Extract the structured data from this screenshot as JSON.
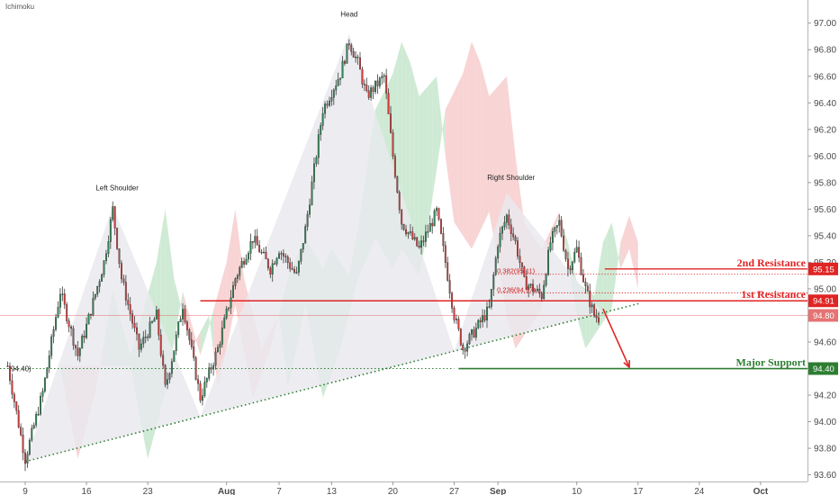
{
  "indicator_label": "Ichimoku",
  "colors": {
    "up": "#2e8b57",
    "down": "#e03b3b",
    "wick": "#3a3a3a",
    "resistance": "#e02424",
    "support": "#2e7d32",
    "cloud_bull": "#bfe3c5",
    "cloud_bear": "#f5c6c6",
    "pattern_fill": "#e9e9ee",
    "current": "#e57373"
  },
  "chart_data": {
    "type": "candlestick",
    "title": "",
    "ylim": [
      93.55,
      97.12
    ],
    "y_ticks": [
      "93.60",
      "93.80",
      "94.00",
      "94.20",
      "94.40",
      "94.60",
      "94.80",
      "95.00",
      "95.20",
      "95.40",
      "95.60",
      "95.80",
      "96.00",
      "96.20",
      "96.40",
      "96.60",
      "96.80",
      "97.00"
    ],
    "x_ticks": [
      {
        "label": "9",
        "day": 9
      },
      {
        "label": "16",
        "day": 16
      },
      {
        "label": "23",
        "day": 23
      },
      {
        "label": "Aug",
        "day": 32
      },
      {
        "label": "7",
        "day": 38
      },
      {
        "label": "13",
        "day": 44
      },
      {
        "label": "20",
        "day": 51
      },
      {
        "label": "27",
        "day": 58
      },
      {
        "label": "Sep",
        "day": 63
      },
      {
        "label": "10",
        "day": 72
      },
      {
        "label": "17",
        "day": 79
      },
      {
        "label": "24",
        "day": 86
      },
      {
        "label": "Oct",
        "day": 93
      }
    ],
    "price_path": [
      [
        7,
        94.42
      ],
      [
        9,
        93.72
      ],
      [
        11,
        94.22
      ],
      [
        13,
        94.98
      ],
      [
        15,
        94.5
      ],
      [
        16,
        94.72
      ],
      [
        18,
        95.2
      ],
      [
        19,
        95.6
      ],
      [
        20,
        95.08
      ],
      [
        22,
        94.55
      ],
      [
        24,
        94.8
      ],
      [
        25,
        94.25
      ],
      [
        26,
        94.55
      ],
      [
        27,
        94.88
      ],
      [
        29,
        94.18
      ],
      [
        31,
        94.55
      ],
      [
        33,
        95.08
      ],
      [
        35,
        95.38
      ],
      [
        37,
        95.15
      ],
      [
        38,
        95.3
      ],
      [
        40,
        95.1
      ],
      [
        41,
        95.45
      ],
      [
        43,
        96.35
      ],
      [
        45,
        96.62
      ],
      [
        46,
        96.86
      ],
      [
        47,
        96.7
      ],
      [
        48,
        96.45
      ],
      [
        50,
        96.6
      ],
      [
        51,
        96.0
      ],
      [
        52,
        95.5
      ],
      [
        54,
        95.3
      ],
      [
        56,
        95.58
      ],
      [
        57,
        95.2
      ],
      [
        58,
        94.8
      ],
      [
        59,
        94.55
      ],
      [
        60,
        94.65
      ],
      [
        62,
        94.85
      ],
      [
        63,
        95.35
      ],
      [
        64,
        95.55
      ],
      [
        65,
        95.35
      ],
      [
        66,
        95.05
      ],
      [
        68,
        94.95
      ],
      [
        69,
        95.35
      ],
      [
        70,
        95.5
      ],
      [
        71,
        95.15
      ],
      [
        72,
        95.3
      ],
      [
        73,
        95.0
      ],
      [
        74,
        94.8
      ],
      [
        74.5,
        94.78
      ]
    ],
    "levels": [
      {
        "name": "2nd Resistance",
        "value": 95.15,
        "tag": "95.15",
        "color": "#e02424"
      },
      {
        "name": "1st Resistance",
        "value": 94.91,
        "tag": "94.91",
        "color": "#e02424"
      },
      {
        "name": "Major Support",
        "value": 94.4,
        "tag": "94.40",
        "color": "#2e7d32"
      }
    ],
    "current_price": {
      "value": 94.8,
      "tag": "94.80"
    },
    "fib_levels": [
      {
        "label": "0.382(95.11)",
        "value": 95.11
      },
      {
        "label": "0.236(94.97)",
        "value": 94.97
      }
    ],
    "pattern_labels": [
      {
        "text": "Left Shoulder",
        "day": 19.5,
        "value": 95.74
      },
      {
        "text": "Head",
        "day": 46,
        "value": 97.05
      },
      {
        "text": "Right Shoulder",
        "day": 64.5,
        "value": 95.82
      }
    ],
    "left_level_label": {
      "text": "94.40)",
      "value": 94.4
    },
    "trendline": {
      "from": {
        "day": 9,
        "value": 93.7
      },
      "to": {
        "day": 75,
        "value": 94.82
      }
    },
    "arrow": {
      "from": {
        "day": 75,
        "value": 94.85
      },
      "to": {
        "day": 78,
        "value": 94.41
      }
    }
  }
}
